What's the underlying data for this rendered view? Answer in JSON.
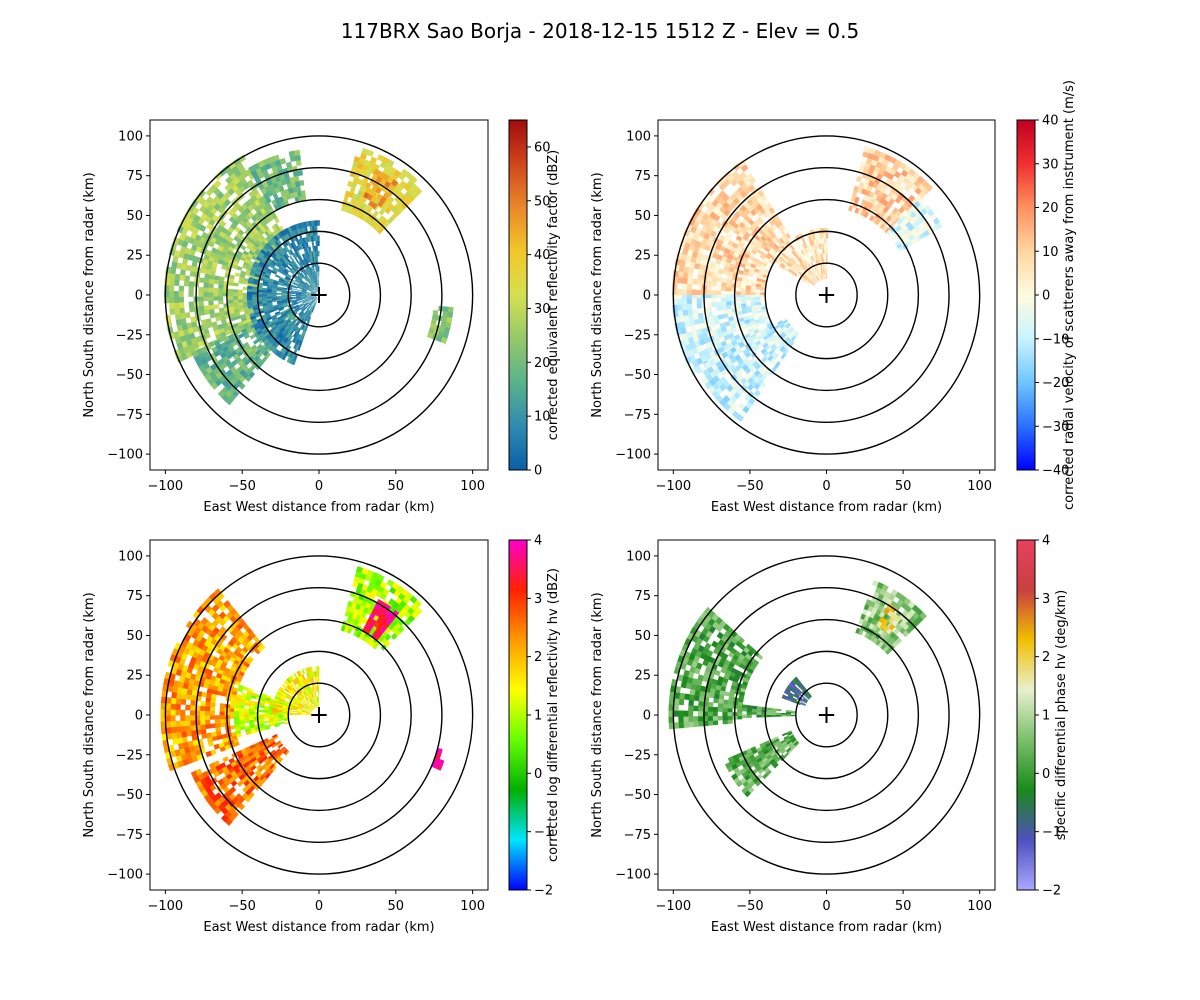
{
  "figure": {
    "title": "117BRX Sao Borja - 2018-12-15 1512 Z -  Elev = 0.5"
  },
  "chart_data": [
    {
      "type": "ppi",
      "panel": "top-left",
      "xlabel": "East West distance from radar (km)",
      "ylabel": "North South distance from radar (km)",
      "xlim": [
        -110,
        110
      ],
      "ylim": [
        -110,
        110
      ],
      "xticks": [
        -100,
        -50,
        0,
        50,
        100
      ],
      "yticks": [
        -100,
        -75,
        -50,
        -25,
        0,
        25,
        50,
        75,
        100
      ],
      "range_rings_km": [
        20,
        40,
        60,
        80,
        100
      ],
      "colorbar": {
        "label": "corrected equivalent reflectivity factor (dBZ)",
        "vmin": 0,
        "vmax": 65,
        "ticks": [
          0,
          10,
          20,
          30,
          40,
          50,
          60
        ],
        "colors": [
          "#0b5fa5",
          "#2f8bb0",
          "#5ab28a",
          "#94c96a",
          "#d6e050",
          "#f2c72a",
          "#e8882a",
          "#d0461d",
          "#a00c0c"
        ]
      },
      "echo_regions": [
        {
          "name": "west-sector",
          "az": [
            245,
            330
          ],
          "r": [
            40,
            100
          ],
          "value": 26
        },
        {
          "name": "sw-arm",
          "az": [
            220,
            245
          ],
          "r": [
            20,
            90
          ],
          "value": 18
        },
        {
          "name": "near-core",
          "az": [
            200,
            360
          ],
          "r": [
            2,
            45
          ],
          "value": 8
        },
        {
          "name": "northwest-cell",
          "az": [
            330,
            350
          ],
          "r": [
            60,
            90
          ],
          "value": 20
        },
        {
          "name": "northeast-storm",
          "az": [
            15,
            45
          ],
          "r": [
            55,
            95
          ],
          "value": 36
        },
        {
          "name": "northeast-core",
          "az": [
            25,
            35
          ],
          "r": [
            65,
            85
          ],
          "value": 46
        },
        {
          "name": "east-patch",
          "az": [
            95,
            110
          ],
          "r": [
            75,
            85
          ],
          "value": 22
        }
      ]
    },
    {
      "type": "ppi",
      "panel": "top-right",
      "xlabel": "East West distance from radar (km)",
      "ylabel": "North South distance from radar (km)",
      "xlim": [
        -110,
        110
      ],
      "ylim": [
        -110,
        110
      ],
      "xticks": [
        -100,
        -50,
        0,
        50,
        100
      ],
      "yticks": [
        -100,
        -75,
        -50,
        -25,
        0,
        25,
        50,
        75,
        100
      ],
      "range_rings_km": [
        20,
        40,
        60,
        80,
        100
      ],
      "colorbar": {
        "label": "corrected radial velocity of scatterers away from instrument (m/s)",
        "vmin": -40,
        "vmax": 40,
        "ticks": [
          -40,
          -30,
          -20,
          -10,
          0,
          10,
          20,
          30,
          40
        ],
        "colors": [
          "#0000ff",
          "#2a70ff",
          "#6ec6ff",
          "#c8f4ff",
          "#fffbe0",
          "#ffd6a0",
          "#ff9060",
          "#f03030",
          "#c00020"
        ]
      },
      "echo_regions": [
        {
          "name": "west-inbound",
          "az": [
            240,
            270
          ],
          "r": [
            40,
            100
          ],
          "value": -8
        },
        {
          "name": "northwest-outbound",
          "az": [
            270,
            325
          ],
          "r": [
            40,
            100
          ],
          "value": 8
        },
        {
          "name": "sw-arm",
          "az": [
            215,
            240
          ],
          "r": [
            30,
            95
          ],
          "value": -9
        },
        {
          "name": "northeast-storm",
          "az": [
            15,
            45
          ],
          "r": [
            55,
            95
          ],
          "value": 10
        },
        {
          "name": "northeast-edge",
          "az": [
            45,
            60
          ],
          "r": [
            55,
            85
          ],
          "value": -6
        },
        {
          "name": "near-core",
          "az": [
            300,
            360
          ],
          "r": [
            10,
            40
          ],
          "value": 6
        }
      ]
    },
    {
      "type": "ppi",
      "panel": "bottom-left",
      "xlabel": "East West distance from radar (km)",
      "ylabel": "North South distance from radar (km)",
      "xlim": [
        -110,
        110
      ],
      "ylim": [
        -110,
        110
      ],
      "xticks": [
        -100,
        -50,
        0,
        50,
        100
      ],
      "yticks": [
        -100,
        -75,
        -50,
        -25,
        0,
        25,
        50,
        75,
        100
      ],
      "range_rings_km": [
        20,
        40,
        60,
        80,
        100
      ],
      "colorbar": {
        "label": "corrected log differential reflectivity hv (dBZ)",
        "vmin": -2,
        "vmax": 4,
        "ticks": [
          -2,
          -1,
          0,
          1,
          2,
          3,
          4
        ],
        "colors": [
          "#0000ff",
          "#00e5ff",
          "#00b000",
          "#66ff00",
          "#ffff00",
          "#ff9900",
          "#ff2200",
          "#ff00cc"
        ]
      },
      "echo_regions": [
        {
          "name": "west-sector",
          "az": [
            250,
            320
          ],
          "r": [
            55,
            100
          ],
          "value": 2.2
        },
        {
          "name": "west-inner",
          "az": [
            255,
            290
          ],
          "r": [
            20,
            55
          ],
          "value": 1.2
        },
        {
          "name": "sw-arm",
          "az": [
            220,
            245
          ],
          "r": [
            30,
            90
          ],
          "value": 2.6
        },
        {
          "name": "northeast-storm",
          "az": [
            15,
            45
          ],
          "r": [
            55,
            95
          ],
          "value": 0.9
        },
        {
          "name": "northeast-core",
          "az": [
            28,
            38
          ],
          "r": [
            60,
            80
          ],
          "value": 3.6
        },
        {
          "name": "near-core",
          "az": [
            270,
            360
          ],
          "r": [
            5,
            30
          ],
          "value": 1.5
        },
        {
          "name": "east-patch",
          "az": [
            105,
            112
          ],
          "r": [
            80,
            85
          ],
          "value": 3.8
        }
      ]
    },
    {
      "type": "ppi",
      "panel": "bottom-right",
      "xlabel": "East West distance from radar (km)",
      "ylabel": "North South distance from radar (km)",
      "xlim": [
        -110,
        110
      ],
      "ylim": [
        -110,
        110
      ],
      "xticks": [
        -100,
        -50,
        0,
        50,
        100
      ],
      "yticks": [
        -100,
        -75,
        -50,
        -25,
        0,
        25,
        50,
        75,
        100
      ],
      "range_rings_km": [
        20,
        40,
        60,
        80,
        100
      ],
      "colorbar": {
        "label": "specific differential phase hv (deg/km)",
        "vmin": -2,
        "vmax": 4,
        "ticks": [
          -2,
          -1,
          0,
          1,
          2,
          3,
          4
        ],
        "colors": [
          "#a8a8ff",
          "#5050c0",
          "#1a8a1a",
          "#7bbf6a",
          "#e8f0d0",
          "#f0c000",
          "#c84040",
          "#e84060"
        ]
      },
      "echo_regions": [
        {
          "name": "west-sector",
          "az": [
            265,
            310
          ],
          "r": [
            55,
            100
          ],
          "value": 0.2
        },
        {
          "name": "west-inner",
          "az": [
            268,
            275
          ],
          "r": [
            20,
            55
          ],
          "value": 0.1
        },
        {
          "name": "sw-arms",
          "az": [
            225,
            245
          ],
          "r": [
            25,
            70
          ],
          "value": 0.3
        },
        {
          "name": "northeast-storm",
          "az": [
            20,
            45
          ],
          "r": [
            55,
            90
          ],
          "value": 0.7
        },
        {
          "name": "northeast-core",
          "az": [
            30,
            38
          ],
          "r": [
            65,
            78
          ],
          "value": 2.0
        },
        {
          "name": "near-core-edge",
          "az": [
            290,
            320
          ],
          "r": [
            15,
            30
          ],
          "value": -0.8
        }
      ]
    }
  ]
}
